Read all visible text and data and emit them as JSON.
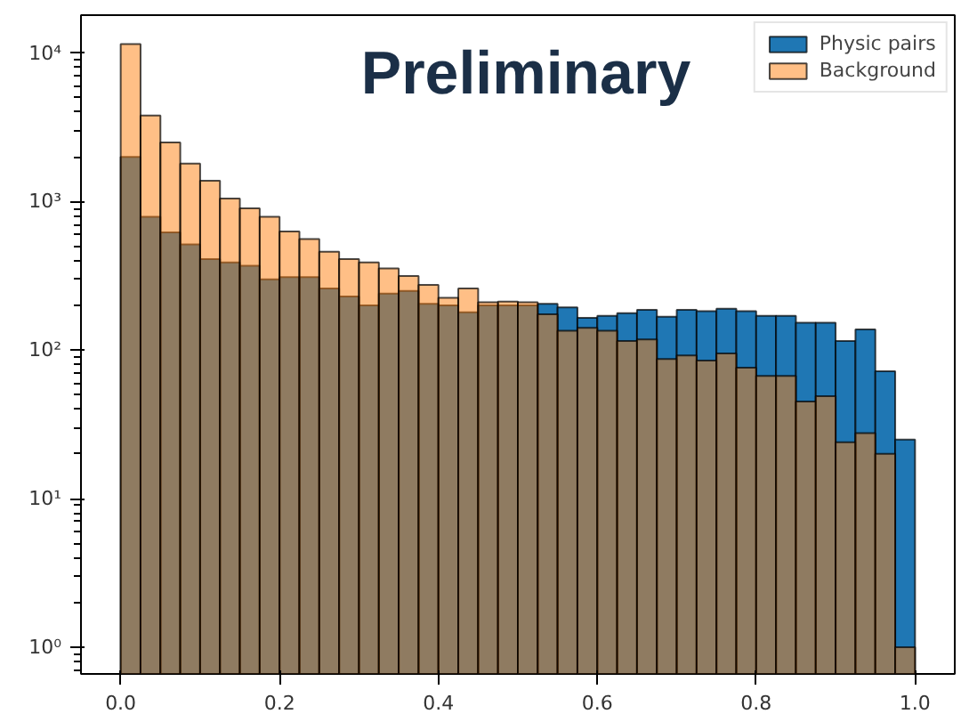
{
  "chart_data": {
    "type": "histogram",
    "log": "y",
    "legend": "top right",
    "grid": false,
    "annotations": [
      "Preliminary"
    ],
    "bins": [
      0,
      0.025,
      0.05,
      0.075,
      0.1,
      0.125,
      0.15,
      0.175,
      0.2,
      0.225,
      0.25,
      0.275,
      0.3,
      0.325,
      0.35,
      0.375,
      0.4,
      0.425,
      0.45,
      0.475,
      0.5,
      0.525,
      0.55,
      0.575,
      0.6,
      0.625,
      0.65,
      0.675,
      0.7,
      0.725,
      0.75,
      0.775,
      0.8,
      0.825,
      0.85,
      0.875,
      0.9,
      0.925,
      0.95,
      0.975,
      1.0
    ],
    "series": [
      {
        "name": "Physic pairs",
        "color": "#1f77b4",
        "values": [
          2000,
          790,
          620,
          515,
          410,
          390,
          370,
          300,
          310,
          310,
          260,
          230,
          200,
          240,
          250,
          205,
          200,
          180,
          200,
          200,
          200,
          205,
          194,
          165,
          170,
          177,
          187,
          168,
          187,
          183,
          190,
          183,
          170,
          170,
          153,
          153,
          115,
          138,
          72,
          25
        ]
      },
      {
        "name": "Background",
        "color": "#ff7f0e",
        "values": [
          11500,
          3800,
          2500,
          1800,
          1380,
          1050,
          900,
          790,
          630,
          560,
          460,
          410,
          390,
          355,
          315,
          275,
          225,
          260,
          210,
          212,
          210,
          174,
          135,
          141,
          135,
          115,
          118,
          87,
          92,
          85,
          95,
          76,
          67,
          67,
          45,
          49,
          24,
          27.6,
          20,
          1
        ]
      }
    ],
    "xlim": [
      -0.05,
      1.05
    ],
    "xticks": [
      {
        "value": 0,
        "label": "0.0"
      },
      0.2,
      0.4,
      0.6,
      0.8,
      {
        "value": 1,
        "label": "1.0"
      }
    ],
    "ylim": [
      0.66,
      18000
    ],
    "yticks": [
      {
        "value": 1,
        "label": "10⁰"
      },
      {
        "value": 10,
        "label": "10¹"
      },
      {
        "value": 100,
        "label": "10²"
      },
      {
        "value": 1000,
        "label": "10³"
      },
      {
        "value": 10000,
        "label": "10⁴"
      }
    ]
  }
}
